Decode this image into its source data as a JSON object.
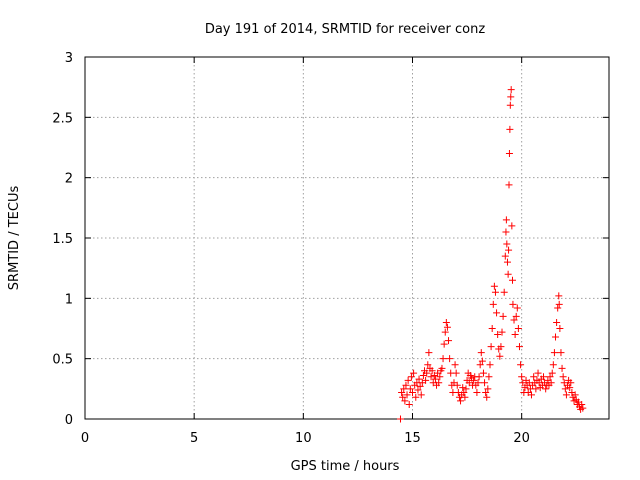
{
  "chart_data": {
    "type": "scatter",
    "title": "Day 191 of 2014, SRMTID for receiver conz",
    "xlabel": "GPS time / hours",
    "ylabel": "SRMTID / TECUs",
    "xlim": [
      0,
      24
    ],
    "ylim": [
      0,
      3
    ],
    "x_ticks": [
      0,
      5,
      10,
      15,
      20
    ],
    "x_tick_labels": [
      "0",
      "5",
      "10",
      "15",
      "20"
    ],
    "y_ticks": [
      0,
      0.5,
      1,
      1.5,
      2,
      2.5,
      3
    ],
    "y_tick_labels": [
      "0",
      "0.5",
      "1",
      "1.5",
      "2",
      "2.5",
      "3"
    ],
    "grid": true,
    "marker": "+",
    "series": [
      {
        "name": "SRMTID",
        "color": "#ff0000",
        "points": [
          [
            14.45,
            0.0
          ],
          [
            14.5,
            0.22
          ],
          [
            14.55,
            0.18
          ],
          [
            14.6,
            0.25
          ],
          [
            14.65,
            0.15
          ],
          [
            14.7,
            0.28
          ],
          [
            14.75,
            0.2
          ],
          [
            14.8,
            0.32
          ],
          [
            14.85,
            0.12
          ],
          [
            14.9,
            0.25
          ],
          [
            14.95,
            0.35
          ],
          [
            15.0,
            0.22
          ],
          [
            15.05,
            0.38
          ],
          [
            15.1,
            0.28
          ],
          [
            15.15,
            0.18
          ],
          [
            15.2,
            0.3
          ],
          [
            15.25,
            0.24
          ],
          [
            15.3,
            0.33
          ],
          [
            15.35,
            0.27
          ],
          [
            15.4,
            0.2
          ],
          [
            15.45,
            0.3
          ],
          [
            15.5,
            0.36
          ],
          [
            15.55,
            0.4
          ],
          [
            15.6,
            0.32
          ],
          [
            15.65,
            0.38
          ],
          [
            15.7,
            0.45
          ],
          [
            15.75,
            0.55
          ],
          [
            15.8,
            0.42
          ],
          [
            15.85,
            0.35
          ],
          [
            15.9,
            0.4
          ],
          [
            15.95,
            0.3
          ],
          [
            16.0,
            0.36
          ],
          [
            16.05,
            0.33
          ],
          [
            16.1,
            0.28
          ],
          [
            16.15,
            0.38
          ],
          [
            16.2,
            0.3
          ],
          [
            16.25,
            0.35
          ],
          [
            16.3,
            0.4
          ],
          [
            16.35,
            0.42
          ],
          [
            16.4,
            0.5
          ],
          [
            16.45,
            0.62
          ],
          [
            16.5,
            0.72
          ],
          [
            16.55,
            0.8
          ],
          [
            16.6,
            0.76
          ],
          [
            16.65,
            0.65
          ],
          [
            16.7,
            0.5
          ],
          [
            16.75,
            0.38
          ],
          [
            16.8,
            0.28
          ],
          [
            16.85,
            0.22
          ],
          [
            16.9,
            0.3
          ],
          [
            16.95,
            0.45
          ],
          [
            17.0,
            0.38
          ],
          [
            17.05,
            0.28
          ],
          [
            17.1,
            0.22
          ],
          [
            17.15,
            0.18
          ],
          [
            17.2,
            0.15
          ],
          [
            17.25,
            0.2
          ],
          [
            17.3,
            0.26
          ],
          [
            17.35,
            0.22
          ],
          [
            17.4,
            0.18
          ],
          [
            17.45,
            0.25
          ],
          [
            17.5,
            0.32
          ],
          [
            17.55,
            0.38
          ],
          [
            17.6,
            0.3
          ],
          [
            17.65,
            0.36
          ],
          [
            17.7,
            0.34
          ],
          [
            17.75,
            0.28
          ],
          [
            17.8,
            0.32
          ],
          [
            17.85,
            0.35
          ],
          [
            17.9,
            0.28
          ],
          [
            17.95,
            0.22
          ],
          [
            18.0,
            0.3
          ],
          [
            18.05,
            0.35
          ],
          [
            18.1,
            0.45
          ],
          [
            18.15,
            0.55
          ],
          [
            18.2,
            0.48
          ],
          [
            18.25,
            0.38
          ],
          [
            18.3,
            0.3
          ],
          [
            18.35,
            0.22
          ],
          [
            18.4,
            0.18
          ],
          [
            18.45,
            0.25
          ],
          [
            18.5,
            0.35
          ],
          [
            18.55,
            0.45
          ],
          [
            18.6,
            0.6
          ],
          [
            18.65,
            0.75
          ],
          [
            18.7,
            0.95
          ],
          [
            18.75,
            1.1
          ],
          [
            18.8,
            1.05
          ],
          [
            18.85,
            0.88
          ],
          [
            18.9,
            0.7
          ],
          [
            18.95,
            0.58
          ],
          [
            19.0,
            0.52
          ],
          [
            19.05,
            0.6
          ],
          [
            19.1,
            0.72
          ],
          [
            19.15,
            0.85
          ],
          [
            19.2,
            1.05
          ],
          [
            19.25,
            1.35
          ],
          [
            19.28,
            1.55
          ],
          [
            19.3,
            1.65
          ],
          [
            19.32,
            1.45
          ],
          [
            19.35,
            1.3
          ],
          [
            19.38,
            1.2
          ],
          [
            19.4,
            1.4
          ],
          [
            19.42,
            1.94
          ],
          [
            19.44,
            2.2
          ],
          [
            19.46,
            2.4
          ],
          [
            19.48,
            2.6
          ],
          [
            19.5,
            2.67
          ],
          [
            19.52,
            2.73
          ],
          [
            19.55,
            1.6
          ],
          [
            19.58,
            1.15
          ],
          [
            19.6,
            0.95
          ],
          [
            19.65,
            0.82
          ],
          [
            19.7,
            0.7
          ],
          [
            19.75,
            0.85
          ],
          [
            19.8,
            0.92
          ],
          [
            19.85,
            0.75
          ],
          [
            19.9,
            0.6
          ],
          [
            19.95,
            0.45
          ],
          [
            20.0,
            0.35
          ],
          [
            20.05,
            0.3
          ],
          [
            20.1,
            0.22
          ],
          [
            20.15,
            0.26
          ],
          [
            20.2,
            0.32
          ],
          [
            20.25,
            0.28
          ],
          [
            20.3,
            0.22
          ],
          [
            20.35,
            0.3
          ],
          [
            20.4,
            0.25
          ],
          [
            20.45,
            0.2
          ],
          [
            20.5,
            0.28
          ],
          [
            20.55,
            0.35
          ],
          [
            20.6,
            0.3
          ],
          [
            20.65,
            0.25
          ],
          [
            20.7,
            0.32
          ],
          [
            20.75,
            0.38
          ],
          [
            20.8,
            0.3
          ],
          [
            20.85,
            0.26
          ],
          [
            20.9,
            0.33
          ],
          [
            20.95,
            0.28
          ],
          [
            21.0,
            0.35
          ],
          [
            21.05,
            0.3
          ],
          [
            21.1,
            0.25
          ],
          [
            21.15,
            0.28
          ],
          [
            21.2,
            0.32
          ],
          [
            21.25,
            0.28
          ],
          [
            21.3,
            0.35
          ],
          [
            21.35,
            0.3
          ],
          [
            21.4,
            0.38
          ],
          [
            21.45,
            0.45
          ],
          [
            21.5,
            0.55
          ],
          [
            21.55,
            0.68
          ],
          [
            21.6,
            0.8
          ],
          [
            21.65,
            0.92
          ],
          [
            21.7,
            1.02
          ],
          [
            21.72,
            0.95
          ],
          [
            21.75,
            0.75
          ],
          [
            21.8,
            0.55
          ],
          [
            21.85,
            0.42
          ],
          [
            21.9,
            0.35
          ],
          [
            21.95,
            0.3
          ],
          [
            22.0,
            0.25
          ],
          [
            22.05,
            0.2
          ],
          [
            22.1,
            0.28
          ],
          [
            22.15,
            0.32
          ],
          [
            22.2,
            0.26
          ],
          [
            22.25,
            0.3
          ],
          [
            22.3,
            0.22
          ],
          [
            22.35,
            0.18
          ],
          [
            22.4,
            0.15
          ],
          [
            22.45,
            0.2
          ],
          [
            22.5,
            0.16
          ],
          [
            22.55,
            0.12
          ],
          [
            22.6,
            0.14
          ],
          [
            22.65,
            0.1
          ],
          [
            22.7,
            0.08
          ],
          [
            22.75,
            0.12
          ],
          [
            22.8,
            0.09
          ]
        ]
      }
    ]
  }
}
